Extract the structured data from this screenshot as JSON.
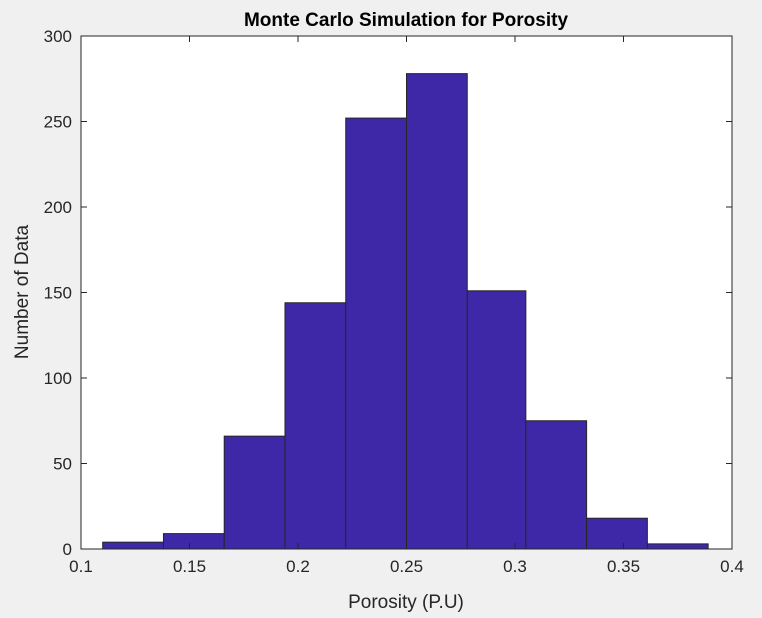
{
  "chart_data": {
    "type": "bar",
    "title": "Monte Carlo Simulation for Porosity",
    "xlabel": "Porosity (P.U)",
    "ylabel": "Number of Data",
    "xlim": [
      0.1,
      0.4
    ],
    "ylim": [
      0,
      300
    ],
    "xticks": [
      0.1,
      0.15,
      0.2,
      0.25,
      0.3,
      0.35,
      0.4
    ],
    "xtick_labels": [
      "0.1",
      "0.15",
      "0.2",
      "0.25",
      "0.3",
      "0.35",
      "0.4"
    ],
    "yticks": [
      0,
      50,
      100,
      150,
      200,
      250,
      300
    ],
    "ytick_labels": [
      "0",
      "50",
      "100",
      "150",
      "200",
      "250",
      "300"
    ],
    "bins": [
      {
        "start": 0.11,
        "end": 0.138,
        "count": 4
      },
      {
        "start": 0.138,
        "end": 0.166,
        "count": 9
      },
      {
        "start": 0.166,
        "end": 0.194,
        "count": 66
      },
      {
        "start": 0.194,
        "end": 0.222,
        "count": 144
      },
      {
        "start": 0.222,
        "end": 0.25,
        "count": 252
      },
      {
        "start": 0.25,
        "end": 0.278,
        "count": 278
      },
      {
        "start": 0.278,
        "end": 0.305,
        "count": 151
      },
      {
        "start": 0.305,
        "end": 0.333,
        "count": 75
      },
      {
        "start": 0.333,
        "end": 0.361,
        "count": 18
      },
      {
        "start": 0.361,
        "end": 0.389,
        "count": 3
      }
    ],
    "grid": false,
    "colors": {
      "bar_fill": "#3e28a8",
      "bar_edge": "#262626",
      "axes_background": "#ffffff",
      "figure_background": "#f0f0f0"
    }
  }
}
